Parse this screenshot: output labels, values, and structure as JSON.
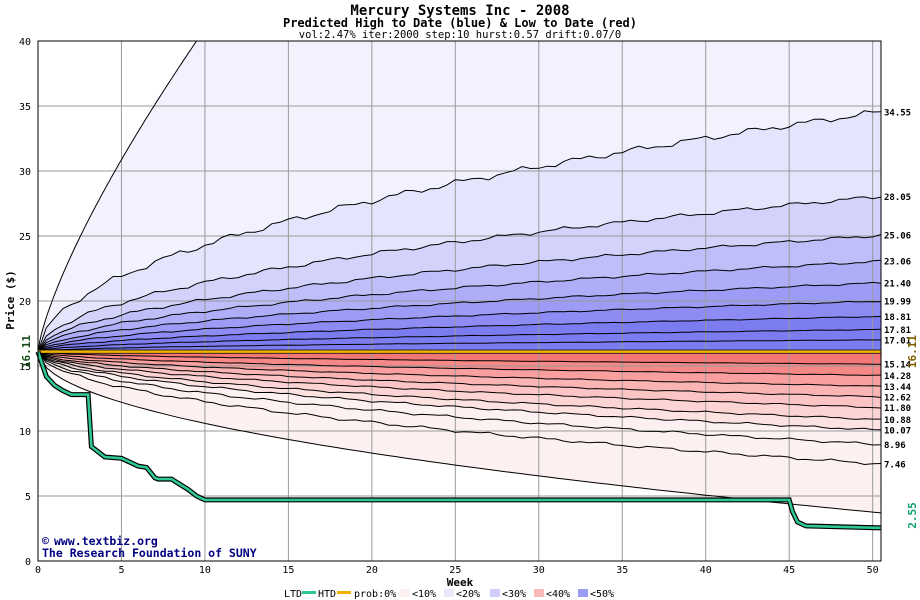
{
  "chart_data": {
    "type": "area",
    "title": "Mercury Systems Inc - 2008",
    "subtitle": "Predicted High to Date (blue) &  Low to Date (red)",
    "params": "vol:2.47% iter:2000 step:10 hurst:0.57 drift:0.07/0",
    "xlabel": "Week",
    "ylabel": "Price ($)",
    "xlim": [
      0,
      50.5
    ],
    "ylim": [
      0,
      40
    ],
    "x_ticks": [
      0,
      5,
      10,
      15,
      20,
      25,
      30,
      35,
      40,
      45,
      50
    ],
    "y_ticks": [
      0,
      5,
      10,
      15,
      20,
      25,
      30,
      35,
      40
    ],
    "grid": true,
    "start_price": "16.11",
    "current_price": "16.11",
    "ltd_price": "2.55",
    "high_quantiles": [
      {
        "end": 34.55,
        "label": "34.55"
      },
      {
        "end": 28.05,
        "label": "28.05"
      },
      {
        "end": 25.06,
        "label": "25.06"
      },
      {
        "end": 23.06,
        "label": "23.06"
      },
      {
        "end": 21.4,
        "label": "21.40"
      },
      {
        "end": 19.99,
        "label": "19.99"
      },
      {
        "end": 18.81,
        "label": "18.81"
      },
      {
        "end": 17.81,
        "label": "17.81"
      },
      {
        "end": 17.01,
        "label": "17.01"
      }
    ],
    "low_quantiles": [
      {
        "end": 15.14,
        "label": "15.14"
      },
      {
        "end": 14.28,
        "label": "14.28"
      },
      {
        "end": 13.44,
        "label": "13.44"
      },
      {
        "end": 12.62,
        "label": "12.62"
      },
      {
        "end": 11.8,
        "label": "11.80"
      },
      {
        "end": 10.88,
        "label": "10.88"
      },
      {
        "end": 10.07,
        "label": "10.07"
      },
      {
        "end": 8.96,
        "label": "8.96"
      },
      {
        "end": 7.46,
        "label": "7.46"
      }
    ],
    "ltd_series": {
      "name": "LTD",
      "x": [
        0,
        0.5,
        1,
        1.5,
        2,
        3,
        3.2,
        4,
        5,
        6,
        6.5,
        7,
        7.2,
        8,
        9,
        9.5,
        10,
        45,
        45.2,
        45.5,
        46,
        50.5
      ],
      "y": [
        16.11,
        14.2,
        13.5,
        13.1,
        12.8,
        12.8,
        8.8,
        8.0,
        7.9,
        7.3,
        7.2,
        6.4,
        6.3,
        6.3,
        5.5,
        5.0,
        4.7,
        4.7,
        3.8,
        3.0,
        2.7,
        2.55
      ]
    },
    "htd_value": 16.11,
    "colors": {
      "blue_bands": [
        "#f2f2ff",
        "#e4e4fd",
        "#d2d2fb",
        "#bebef9",
        "#aeaef8",
        "#9c9cf6",
        "#8c8cf4",
        "#7c7cf1"
      ],
      "red_bands": [
        "#fcf0f0",
        "#fde2e2",
        "#fdd4d4",
        "#fcc4c4",
        "#fbb4b4",
        "#fa9f9f",
        "#f68888",
        "#f37777"
      ],
      "ltd": "#2ec896",
      "htd": "#f0b400",
      "start_label": "#1a4a1a",
      "current_label": "#806000",
      "ltd_label": "#10a070"
    }
  },
  "footer": {
    "copyright": "www.textbiz.org",
    "org": "The Research Foundation of SUNY"
  },
  "legend": {
    "ltd": "LTD",
    "htd": "HTD",
    "prob": "prob:0%",
    "bands": [
      "<10%",
      "<20%",
      "<30%",
      "<40%",
      "<50%"
    ]
  }
}
